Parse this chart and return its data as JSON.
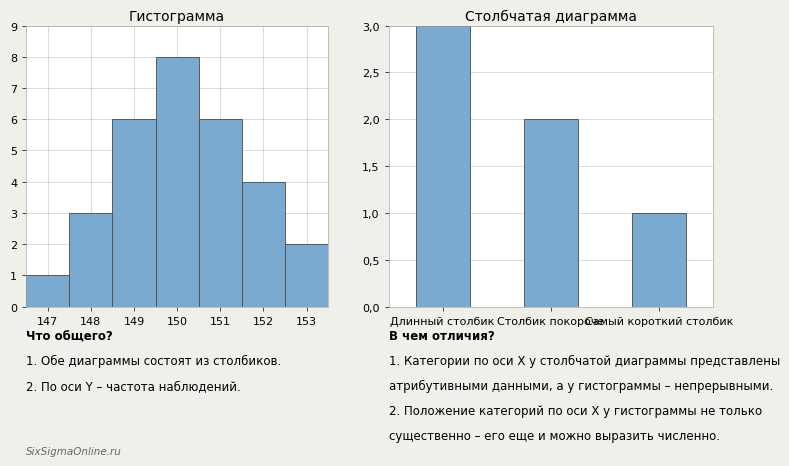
{
  "hist_title": "Гистограмма",
  "hist_bins": [
    146.5,
    147.5,
    148.5,
    149.5,
    150.5,
    151.5,
    152.5,
    153.5
  ],
  "hist_values": [
    1,
    3,
    6,
    8,
    6,
    4,
    2
  ],
  "hist_xlim": [
    146.5,
    153.5
  ],
  "hist_ylim": [
    0,
    9
  ],
  "hist_xticks": [
    147,
    148,
    149,
    150,
    151,
    152,
    153
  ],
  "hist_yticks": [
    0,
    1,
    2,
    3,
    4,
    5,
    6,
    7,
    8,
    9
  ],
  "bar_title": "Столбчатая диаграмма",
  "bar_categories": [
    "Длинный столбик",
    "Столбик покороче",
    "Самый короткий столбик"
  ],
  "bar_values": [
    3,
    2,
    1
  ],
  "bar_ylim": [
    0,
    3.0
  ],
  "bar_yticks": [
    0.0,
    0.5,
    1.0,
    1.5,
    2.0,
    2.5,
    3.0
  ],
  "bar_color": "#7aaacf",
  "bar_edgecolor": "#4a4a4a",
  "text_left_header": "Что общего?",
  "text_left_line1": "1. Обе диаграммы состоят из столбиков.",
  "text_left_line2": "2. По оси Y – частота наблюдений.",
  "text_left_footer": "SixSigmaOnline.ru",
  "text_right_header": "В чем отличия?",
  "text_right_line1": "1. Категории по оси X у столбчатой диаграммы представлены",
  "text_right_line2": "атрибутивными данными, а у гистограммы – непрерывными.",
  "text_right_line3": "2. Положение категорий по оси X у гистограммы не только",
  "text_right_line4": "существенно – его еще и можно выразить численно.",
  "background_color": "#f0f0eb",
  "plot_bg_color": "#ffffff",
  "grid_color": "#cccccc",
  "title_fontsize": 10,
  "tick_fontsize": 8,
  "text_fontsize": 8.5,
  "header_fontsize": 8.5,
  "footer_fontsize": 7.5
}
